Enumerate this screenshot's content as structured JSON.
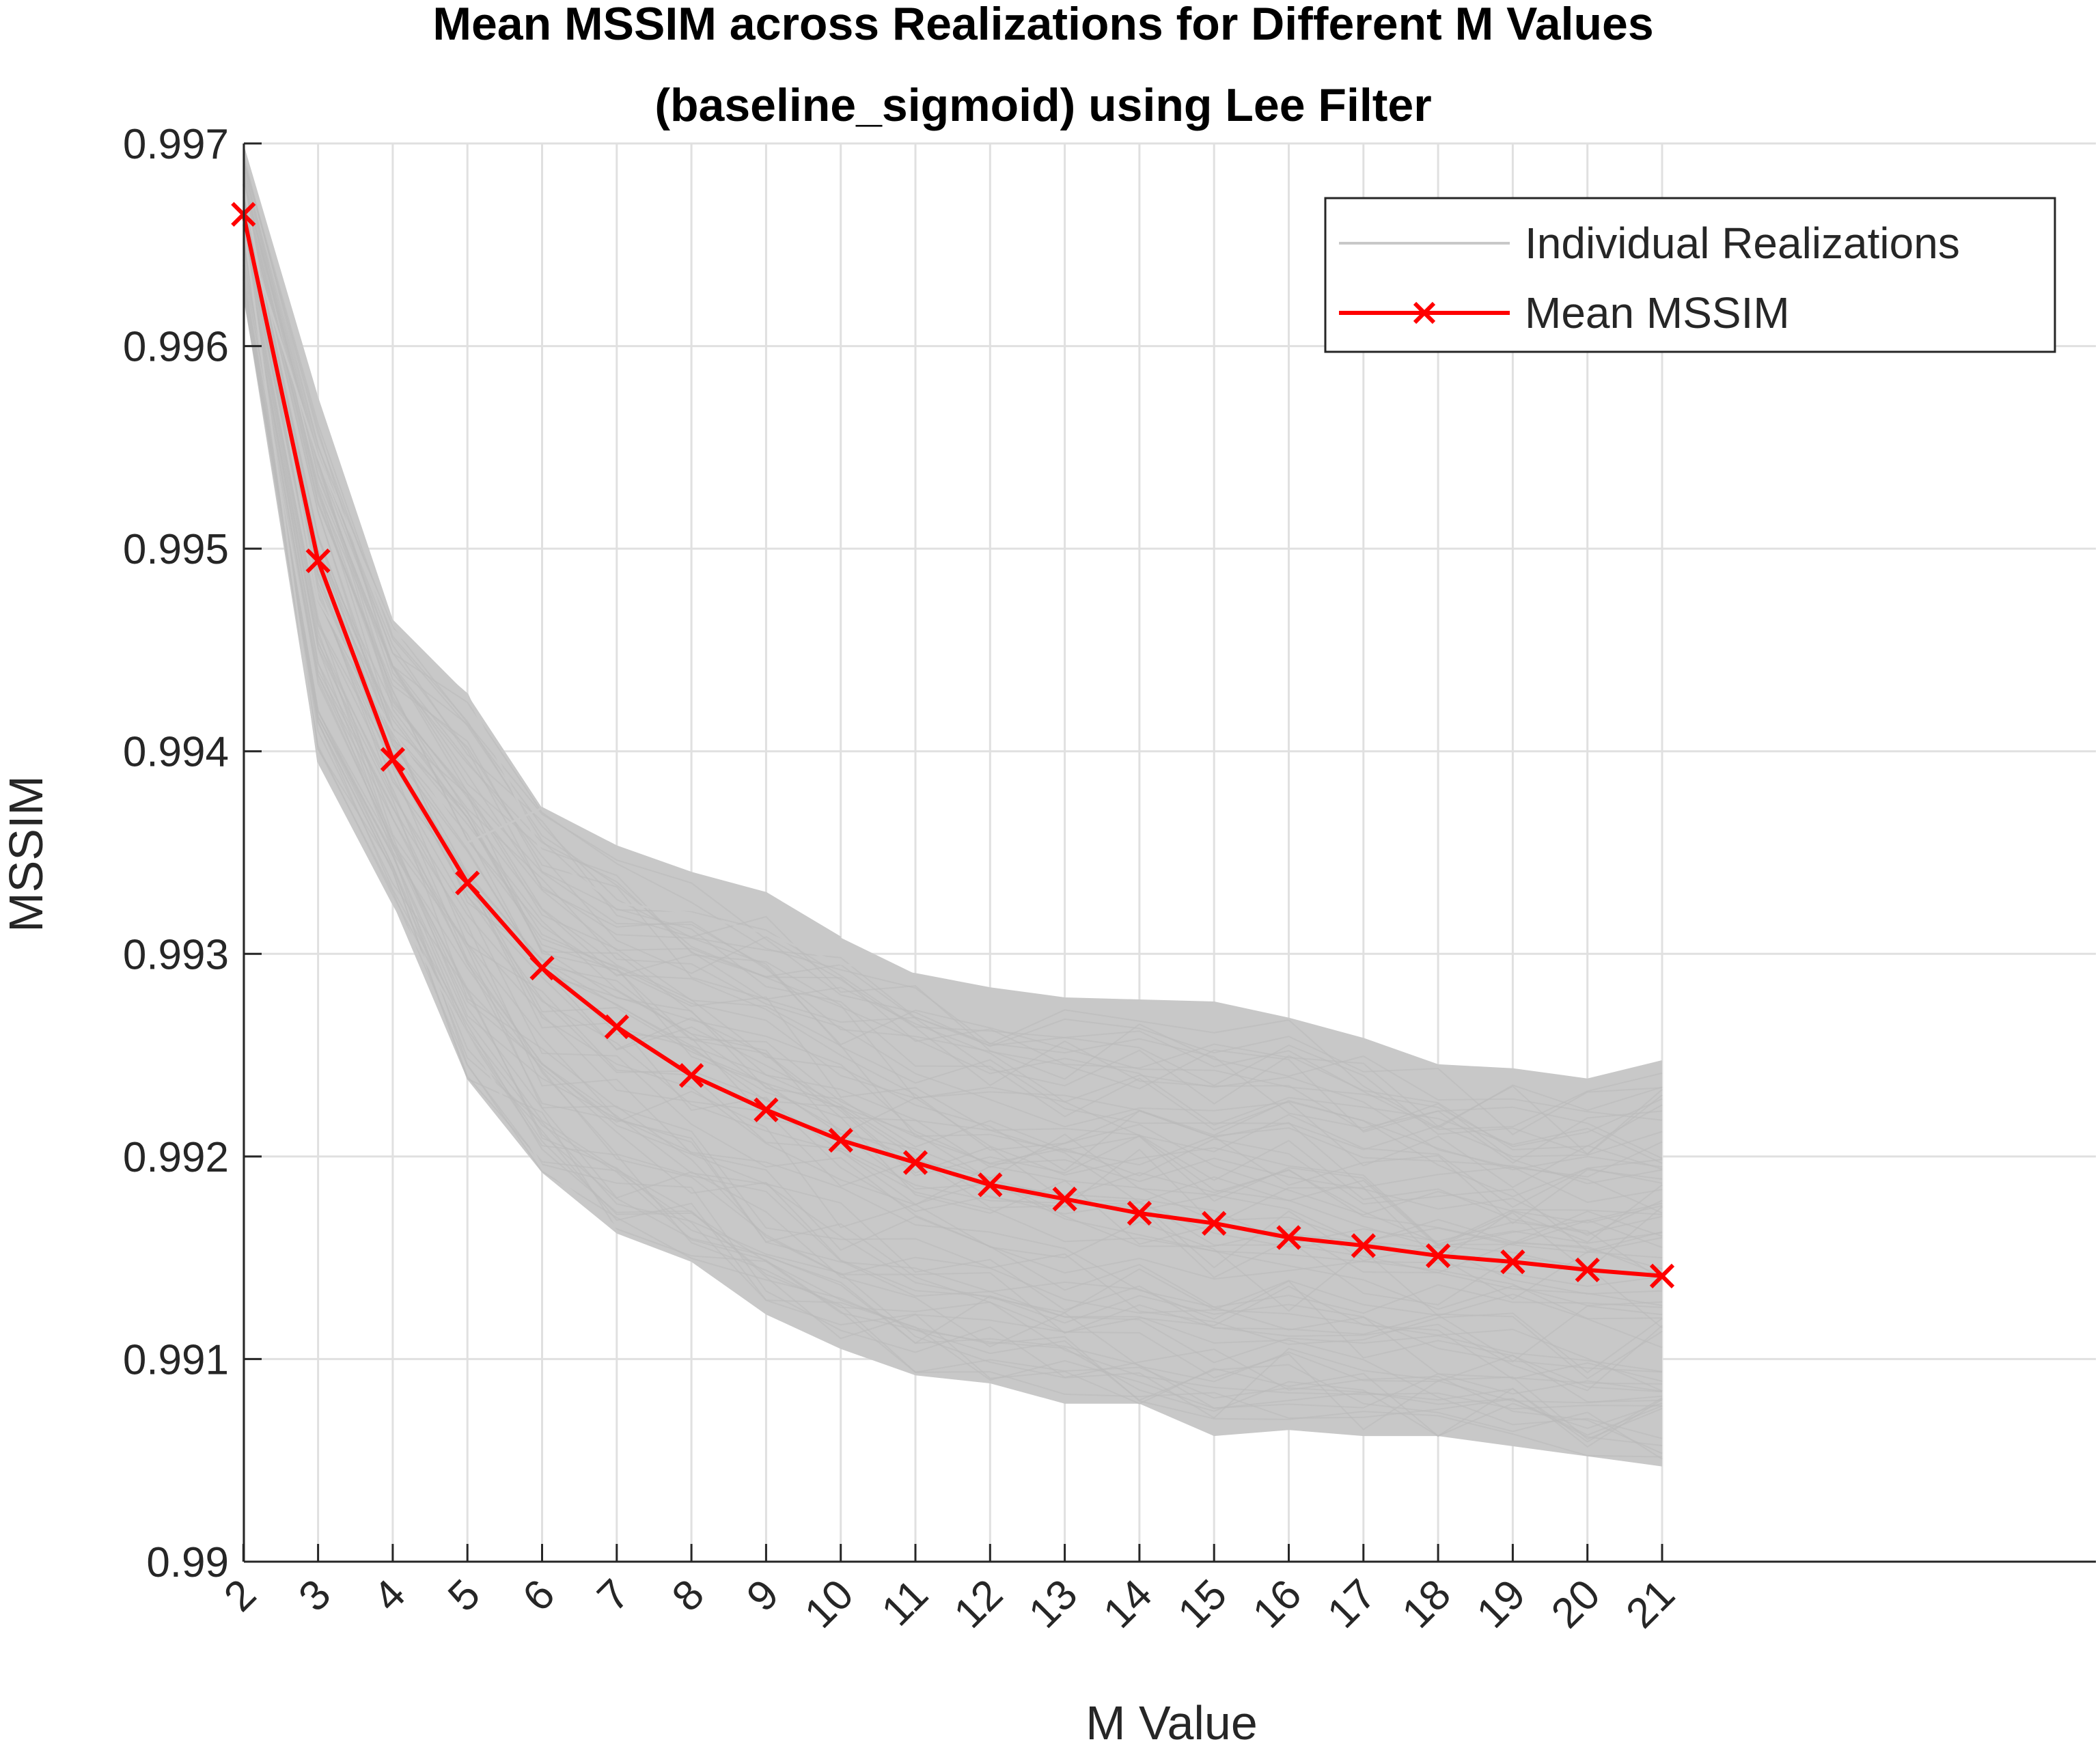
{
  "chart_data": {
    "type": "line",
    "title_line1": "Mean MSSIM across Realizations for Different M Values",
    "title_line2": "(baseline_sigmoid) using Lee Filter",
    "xlabel": "M Value",
    "ylabel": "MSSIM",
    "x": [
      2,
      3,
      4,
      5,
      6,
      7,
      8,
      9,
      10,
      11,
      12,
      13,
      14,
      15,
      16,
      17,
      18,
      19,
      20,
      21
    ],
    "xlim": [
      0,
      25.5
    ],
    "ylim": [
      0.99,
      0.997
    ],
    "y_ticks": [
      "0.99",
      "0.991",
      "0.992",
      "0.993",
      "0.994",
      "0.995",
      "0.996",
      "0.997"
    ],
    "x_ticks": [
      "2",
      "3",
      "4",
      "5",
      "6",
      "7",
      "8",
      "9",
      "10",
      "11",
      "12",
      "13",
      "14",
      "15",
      "16",
      "17",
      "18",
      "19",
      "20",
      "21"
    ],
    "grid": true,
    "legend_position": "top-right",
    "legend": [
      "Individual Realizations",
      "Mean MSSIM"
    ],
    "series": [
      {
        "name": "Mean MSSIM",
        "color": "#ff0000",
        "marker": "x",
        "values": [
          0.99665,
          0.99494,
          0.99396,
          0.99335,
          0.99293,
          0.99264,
          0.9924,
          0.99223,
          0.99208,
          0.99197,
          0.99186,
          0.99179,
          0.99172,
          0.99167,
          0.9916,
          0.99156,
          0.99151,
          0.99148,
          0.99144,
          0.99141
        ]
      }
    ],
    "realizations": {
      "name": "Individual Realizations",
      "color": "#c8c8c8",
      "upper_envelope": [
        0.997,
        0.99575,
        0.99465,
        0.99428,
        0.99372,
        0.99353,
        0.9934,
        0.9933,
        0.99308,
        0.9929,
        0.99283,
        0.99278,
        0.99277,
        0.99276,
        0.99268,
        0.99258,
        0.99245,
        0.99243,
        0.99238,
        0.99247
      ],
      "lower_envelope": [
        0.99625,
        0.99395,
        0.99325,
        0.99238,
        0.99192,
        0.99162,
        0.99148,
        0.99122,
        0.99105,
        0.99092,
        0.99088,
        0.99078,
        0.99078,
        0.99062,
        0.99065,
        0.99062,
        0.99062,
        0.99057,
        0.99052,
        0.99047
      ],
      "outliers": [
        [
          0.9966,
          0.99395,
          0.99325,
          0.9926,
          0.99195,
          0.99165
        ],
        [
          0.9968,
          0.99475,
          0.9941,
          0.99355,
          0.99372,
          0.99353,
          0.9934,
          0.9933,
          0.99308
        ],
        [
          0.9966,
          0.99545,
          0.9946,
          0.99428,
          0.9935,
          0.99325,
          0.9932,
          0.9931,
          0.99295,
          0.9929,
          0.99283,
          0.99278,
          0.99277,
          0.99276,
          0.99268,
          0.99258,
          0.99245,
          0.99243,
          0.99238,
          0.99247
        ]
      ]
    }
  }
}
